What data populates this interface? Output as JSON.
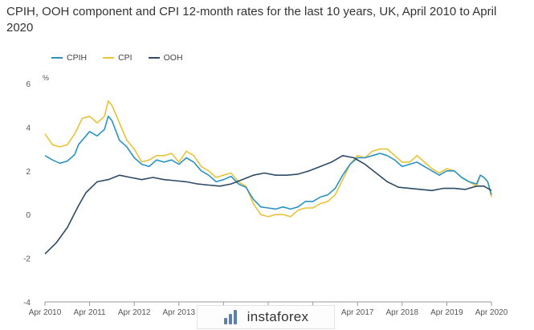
{
  "page": {
    "title": "CPIH, OOH component and CPI 12-month rates for the last 10 years, UK, April 2010 to April 2020"
  },
  "watermark": {
    "text": "instaforex"
  },
  "chart_data": {
    "type": "line",
    "title": "CPIH, OOH component and CPI 12-month rates for the last 10 years, UK, April 2010 to April 2020",
    "ylabel": "%",
    "ylim": [
      -4,
      6
    ],
    "yticks": [
      6,
      4,
      2,
      0,
      -2,
      -4
    ],
    "xlim": [
      "2010-04",
      "2020-04"
    ],
    "xticks": [
      "2010-04",
      "2011-04",
      "2012-04",
      "2013-04",
      "2014-04",
      "2015-04",
      "2016-04",
      "2017-04",
      "2018-04",
      "2019-04",
      "2020-04"
    ],
    "xtick_labels": [
      "Apr 2010",
      "Apr 2011",
      "Apr 2012",
      "Apr 2013",
      "Apr 2014",
      "Apr 2015",
      "Apr 2016",
      "Apr 2017",
      "Apr 2018",
      "Apr 2019",
      "Apr 2020"
    ],
    "grid": false,
    "legend_position": "top-left",
    "series": [
      {
        "name": "CPIH",
        "color": "#2a93c6",
        "points": [
          [
            "2010-04",
            2.7
          ],
          [
            "2010-06",
            2.5
          ],
          [
            "2010-08",
            2.35
          ],
          [
            "2010-10",
            2.45
          ],
          [
            "2010-12",
            2.75
          ],
          [
            "2011-01",
            3.2
          ],
          [
            "2011-03",
            3.6
          ],
          [
            "2011-04",
            3.8
          ],
          [
            "2011-06",
            3.6
          ],
          [
            "2011-08",
            3.9
          ],
          [
            "2011-09",
            4.5
          ],
          [
            "2011-10",
            4.3
          ],
          [
            "2011-12",
            3.4
          ],
          [
            "2012-02",
            3.1
          ],
          [
            "2012-04",
            2.6
          ],
          [
            "2012-06",
            2.3
          ],
          [
            "2012-08",
            2.2
          ],
          [
            "2012-10",
            2.5
          ],
          [
            "2012-12",
            2.4
          ],
          [
            "2013-02",
            2.5
          ],
          [
            "2013-04",
            2.3
          ],
          [
            "2013-06",
            2.6
          ],
          [
            "2013-08",
            2.4
          ],
          [
            "2013-10",
            2.0
          ],
          [
            "2013-12",
            1.8
          ],
          [
            "2014-02",
            1.5
          ],
          [
            "2014-04",
            1.6
          ],
          [
            "2014-06",
            1.75
          ],
          [
            "2014-08",
            1.4
          ],
          [
            "2014-10",
            1.25
          ],
          [
            "2014-12",
            0.7
          ],
          [
            "2015-02",
            0.35
          ],
          [
            "2015-04",
            0.3
          ],
          [
            "2015-06",
            0.25
          ],
          [
            "2015-08",
            0.35
          ],
          [
            "2015-10",
            0.25
          ],
          [
            "2015-12",
            0.35
          ],
          [
            "2016-02",
            0.6
          ],
          [
            "2016-04",
            0.6
          ],
          [
            "2016-06",
            0.8
          ],
          [
            "2016-08",
            0.9
          ],
          [
            "2016-10",
            1.2
          ],
          [
            "2016-12",
            1.8
          ],
          [
            "2017-02",
            2.3
          ],
          [
            "2017-04",
            2.6
          ],
          [
            "2017-06",
            2.6
          ],
          [
            "2017-08",
            2.7
          ],
          [
            "2017-10",
            2.8
          ],
          [
            "2017-12",
            2.7
          ],
          [
            "2018-02",
            2.5
          ],
          [
            "2018-04",
            2.2
          ],
          [
            "2018-06",
            2.3
          ],
          [
            "2018-08",
            2.4
          ],
          [
            "2018-10",
            2.2
          ],
          [
            "2018-12",
            2.0
          ],
          [
            "2019-02",
            1.8
          ],
          [
            "2019-04",
            2.0
          ],
          [
            "2019-06",
            2.0
          ],
          [
            "2019-08",
            1.7
          ],
          [
            "2019-10",
            1.5
          ],
          [
            "2019-12",
            1.4
          ],
          [
            "2020-01",
            1.8
          ],
          [
            "2020-02",
            1.7
          ],
          [
            "2020-03",
            1.5
          ],
          [
            "2020-04",
            0.9
          ]
        ]
      },
      {
        "name": "CPI",
        "color": "#e8c33a",
        "points": [
          [
            "2010-04",
            3.7
          ],
          [
            "2010-06",
            3.2
          ],
          [
            "2010-08",
            3.1
          ],
          [
            "2010-10",
            3.2
          ],
          [
            "2010-12",
            3.7
          ],
          [
            "2011-02",
            4.4
          ],
          [
            "2011-04",
            4.5
          ],
          [
            "2011-06",
            4.2
          ],
          [
            "2011-08",
            4.5
          ],
          [
            "2011-09",
            5.2
          ],
          [
            "2011-10",
            5.0
          ],
          [
            "2011-12",
            4.2
          ],
          [
            "2012-02",
            3.4
          ],
          [
            "2012-04",
            3.0
          ],
          [
            "2012-06",
            2.4
          ],
          [
            "2012-08",
            2.5
          ],
          [
            "2012-10",
            2.7
          ],
          [
            "2012-12",
            2.7
          ],
          [
            "2013-02",
            2.8
          ],
          [
            "2013-04",
            2.4
          ],
          [
            "2013-06",
            2.9
          ],
          [
            "2013-08",
            2.7
          ],
          [
            "2013-10",
            2.2
          ],
          [
            "2013-12",
            2.0
          ],
          [
            "2014-02",
            1.7
          ],
          [
            "2014-04",
            1.8
          ],
          [
            "2014-06",
            1.9
          ],
          [
            "2014-08",
            1.5
          ],
          [
            "2014-10",
            1.3
          ],
          [
            "2014-12",
            0.5
          ],
          [
            "2015-02",
            0.0
          ],
          [
            "2015-04",
            -0.1
          ],
          [
            "2015-06",
            0.0
          ],
          [
            "2015-08",
            0.0
          ],
          [
            "2015-10",
            -0.1
          ],
          [
            "2015-12",
            0.2
          ],
          [
            "2016-02",
            0.3
          ],
          [
            "2016-04",
            0.3
          ],
          [
            "2016-06",
            0.5
          ],
          [
            "2016-08",
            0.6
          ],
          [
            "2016-10",
            0.9
          ],
          [
            "2016-12",
            1.6
          ],
          [
            "2017-02",
            2.3
          ],
          [
            "2017-04",
            2.7
          ],
          [
            "2017-06",
            2.6
          ],
          [
            "2017-08",
            2.9
          ],
          [
            "2017-10",
            3.0
          ],
          [
            "2017-12",
            3.0
          ],
          [
            "2018-02",
            2.7
          ],
          [
            "2018-04",
            2.4
          ],
          [
            "2018-06",
            2.4
          ],
          [
            "2018-08",
            2.7
          ],
          [
            "2018-10",
            2.4
          ],
          [
            "2018-12",
            2.1
          ],
          [
            "2019-02",
            1.9
          ],
          [
            "2019-04",
            2.1
          ],
          [
            "2019-06",
            2.0
          ],
          [
            "2019-08",
            1.7
          ],
          [
            "2019-10",
            1.5
          ],
          [
            "2019-12",
            1.3
          ],
          [
            "2020-01",
            1.8
          ],
          [
            "2020-02",
            1.7
          ],
          [
            "2020-03",
            1.5
          ],
          [
            "2020-04",
            0.8
          ]
        ]
      },
      {
        "name": "OOH",
        "color": "#2d4a66",
        "points": [
          [
            "2010-04",
            -1.8
          ],
          [
            "2010-07",
            -1.3
          ],
          [
            "2010-10",
            -0.6
          ],
          [
            "2011-01",
            0.4
          ],
          [
            "2011-03",
            1.0
          ],
          [
            "2011-06",
            1.5
          ],
          [
            "2011-09",
            1.6
          ],
          [
            "2011-12",
            1.8
          ],
          [
            "2012-03",
            1.7
          ],
          [
            "2012-06",
            1.6
          ],
          [
            "2012-09",
            1.7
          ],
          [
            "2012-12",
            1.6
          ],
          [
            "2013-03",
            1.55
          ],
          [
            "2013-06",
            1.5
          ],
          [
            "2013-09",
            1.4
          ],
          [
            "2013-12",
            1.35
          ],
          [
            "2014-03",
            1.3
          ],
          [
            "2014-06",
            1.4
          ],
          [
            "2014-09",
            1.6
          ],
          [
            "2014-12",
            1.8
          ],
          [
            "2015-03",
            1.9
          ],
          [
            "2015-06",
            1.8
          ],
          [
            "2015-09",
            1.8
          ],
          [
            "2015-12",
            1.85
          ],
          [
            "2016-03",
            2.0
          ],
          [
            "2016-06",
            2.2
          ],
          [
            "2016-09",
            2.4
          ],
          [
            "2016-12",
            2.7
          ],
          [
            "2017-03",
            2.6
          ],
          [
            "2017-06",
            2.3
          ],
          [
            "2017-09",
            1.9
          ],
          [
            "2017-12",
            1.5
          ],
          [
            "2018-03",
            1.25
          ],
          [
            "2018-06",
            1.2
          ],
          [
            "2018-09",
            1.15
          ],
          [
            "2018-12",
            1.1
          ],
          [
            "2019-03",
            1.2
          ],
          [
            "2019-06",
            1.2
          ],
          [
            "2019-09",
            1.15
          ],
          [
            "2019-12",
            1.3
          ],
          [
            "2020-02",
            1.3
          ],
          [
            "2020-04",
            1.1
          ]
        ]
      }
    ]
  }
}
